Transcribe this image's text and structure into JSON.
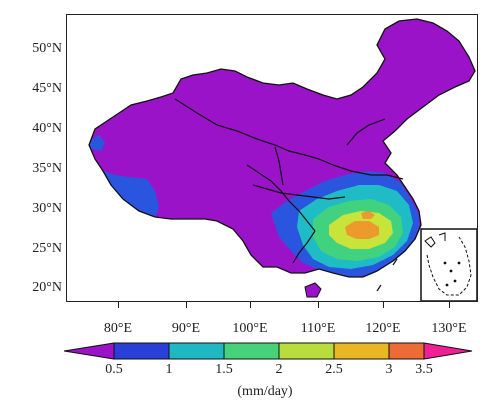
{
  "map": {
    "variable_units": "(mm/day)",
    "lat_labels": [
      "50°N",
      "45°N",
      "40°N",
      "35°N",
      "30°N",
      "25°N",
      "20°N"
    ],
    "lon_labels": [
      "80°E",
      "90°E",
      "100°E",
      "110°E",
      "120°E",
      "130°E"
    ],
    "inset": "South China Sea islands"
  },
  "colorbar": {
    "tick_labels": [
      "0.5",
      "1",
      "1.5",
      "2",
      "2.5",
      "3",
      "3.5"
    ],
    "colors": [
      "#9b13c9",
      "#2840d8",
      "#1fb8c2",
      "#46d27a",
      "#b8dd3c",
      "#e9b624",
      "#ec6b36",
      "#f01f96"
    ],
    "extend": "both"
  },
  "colors": {
    "purple": "#9b13c9",
    "blue": "#2a55de",
    "cyan": "#1fbcc6",
    "green": "#41d27f",
    "yellow_green": "#c8e33a",
    "orange": "#eb9a2b",
    "magenta": "#f01f96",
    "border": "#111111"
  }
}
